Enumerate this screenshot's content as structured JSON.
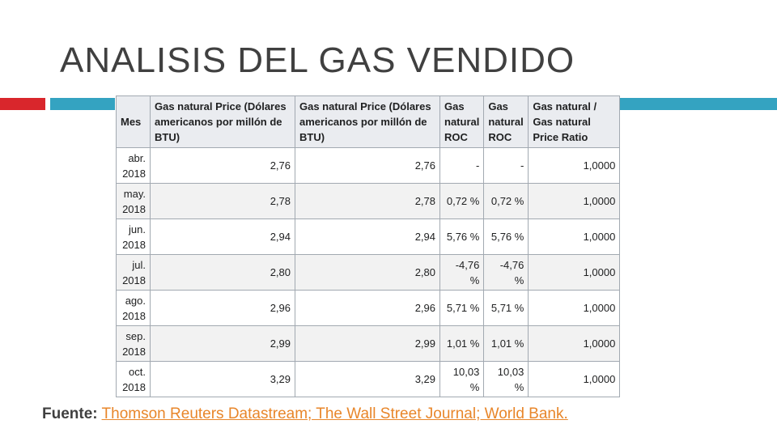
{
  "slide": {
    "title": "ANALISIS DEL GAS VENDIDO",
    "colors": {
      "accent_red": "#d9262c",
      "accent_blue": "#34a3c1",
      "link": "#e8862a"
    }
  },
  "table": {
    "headers": [
      "Mes",
      "Gas natural Price (Dólares americanos por millón de BTU)",
      "Gas natural Price (Dólares americanos por millón de BTU)",
      "Gas natural ROC",
      "Gas natural ROC",
      "Gas natural / Gas natural Price Ratio"
    ],
    "rows": [
      [
        "abr. 2018",
        "2,76",
        "2,76",
        "-",
        "-",
        "1,0000"
      ],
      [
        "may. 2018",
        "2,78",
        "2,78",
        "0,72 %",
        "0,72 %",
        "1,0000"
      ],
      [
        "jun. 2018",
        "2,94",
        "2,94",
        "5,76 %",
        "5,76 %",
        "1,0000"
      ],
      [
        "jul. 2018",
        "2,80",
        "2,80",
        "-4,76 %",
        "-4,76 %",
        "1,0000"
      ],
      [
        "ago. 2018",
        "2,96",
        "2,96",
        "5,71 %",
        "5,71 %",
        "1,0000"
      ],
      [
        "sep. 2018",
        "2,99",
        "2,99",
        "1,01 %",
        "1,01 %",
        "1,0000"
      ],
      [
        "oct. 2018",
        "3,29",
        "3,29",
        "10,03 %",
        "10,03 %",
        "1,0000"
      ]
    ]
  },
  "source": {
    "label": "Fuente:",
    "link_text": "Thomson Reuters Datastream; The Wall Street Journal; World Bank."
  }
}
